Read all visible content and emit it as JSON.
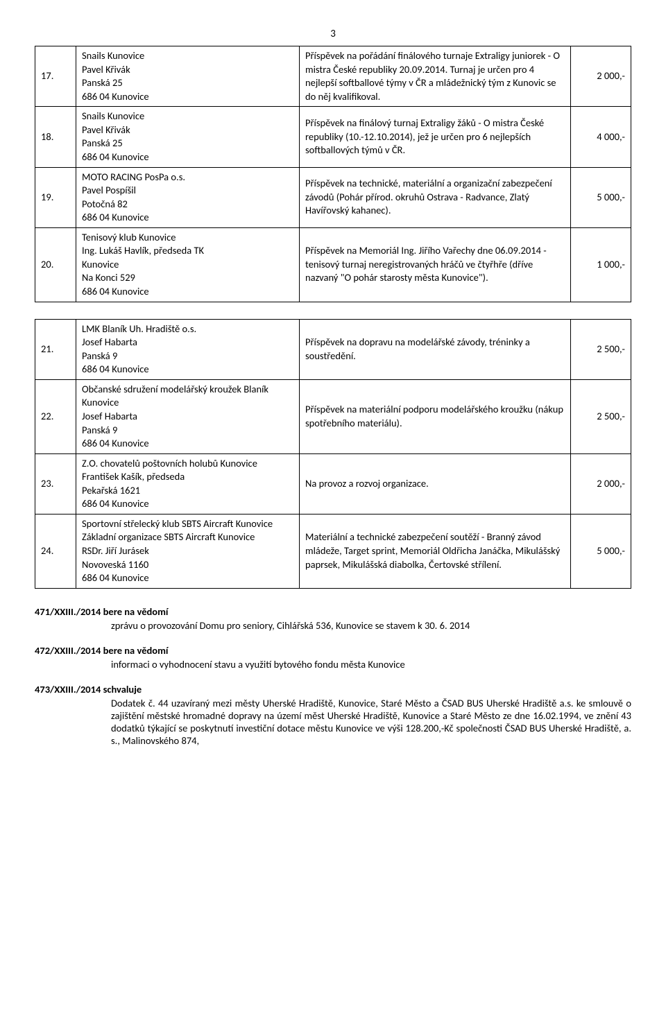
{
  "page_number": "3",
  "table1": {
    "rows": [
      {
        "num": "17.",
        "entity": "Snails Kunovice\nPavel Křivák\nPanská 25\n686 04  Kunovice",
        "desc": "Příspěvek na pořádání finálového turnaje Extraligy juniorek - O mistra České republiky 20.09.2014. Turnaj je určen pro 4 nejlepší softballové týmy v ČR a mládežnický tým z Kunovic se do něj kvalifikoval.",
        "amt": "2 000,-"
      },
      {
        "num": "18.",
        "entity": "Snails Kunovice\nPavel Křivák\nPanská 25\n686 04  Kunovice",
        "desc": "Příspěvek na finálový turnaj Extraligy žáků - O mistra České republiky (10.-12.10.2014), jež je určen pro 6 nejlepších softballových týmů v ČR.",
        "amt": "4 000,-"
      },
      {
        "num": "19.",
        "entity": "MOTO RACING PosPa o.s.\nPavel Pospíšil\nPotočná 82\n686 04  Kunovice",
        "desc": "Příspěvek na technické, materiální a organizační zabezpečení závodů (Pohár přírod. okruhů Ostrava - Radvance, Zlatý Havířovský kahanec).",
        "amt": "5 000,-"
      },
      {
        "num": "20.",
        "entity": "Tenisový klub Kunovice\nIng. Lukáš Havlík, předseda TK\nKunovice\nNa Konci 529\n686 04  Kunovice",
        "desc": "Příspěvek na Memoriál Ing. Jiřího Vařechy dne 06.09.2014 - tenisový turnaj neregistrovaných hráčů ve čtyřhře (dříve nazvaný \"O pohár starosty města Kunovice\").",
        "amt": "1 000,-"
      }
    ]
  },
  "table2": {
    "rows": [
      {
        "num": "21.",
        "entity": "LMK Blaník Uh. Hradiště o.s.\nJosef Habarta\nPanská 9\n686 04  Kunovice",
        "desc": "Příspěvek na dopravu na modelářské závody, tréninky a soustředění.",
        "amt": "2 500,-"
      },
      {
        "num": "22.",
        "entity": "Občanské sdružení modelářský kroužek Blaník Kunovice\nJosef Habarta\nPanská 9\n686 04  Kunovice",
        "desc": "Příspěvek na materiální podporu modelářského kroužku (nákup spotřebního materiálu).",
        "amt": "2 500,-"
      },
      {
        "num": "23.",
        "entity": "Z.O. chovatelů poštovních holubů Kunovice\nFrantišek Kašík, předseda\nPekařská 1621\n686 04  Kunovice",
        "desc": "Na provoz a rozvoj organizace.",
        "amt": "2 000,-"
      },
      {
        "num": "24.",
        "entity": "Sportovní střelecký klub SBTS Aircraft Kunovice\nZákladní organizace SBTS Aircraft Kunovice\nRSDr. Jiří Jurásek\nNovoveská 1160\n686 04  Kunovice",
        "desc": "Materiální a technické zabezpečení soutěží - Branný závod mládeže, Target sprint, Memoriál Oldřicha Janáčka, Mikulášský paprsek, Mikulášská diabolka, Čertovské střílení.",
        "amt": "5 000,-"
      }
    ]
  },
  "resolutions": [
    {
      "heading": "471/XXIII./2014 bere na vědomí",
      "body": "zprávu o provozování Domu pro seniory, Cihlářská 536, Kunovice se stavem k 30. 6. 2014"
    },
    {
      "heading": "472/XXIII./2014 bere na vědomí",
      "body": "informaci o vyhodnocení stavu a využití bytového fondu města Kunovice"
    },
    {
      "heading": "473/XXIII./2014 schvaluje",
      "body": "Dodatek č. 44 uzavíraný mezi městy Uherské Hradiště, Kunovice, Staré Město a ČSAD BUS Uherské Hradiště a.s. ke smlouvě o zajištění městské hromadné dopravy na území měst Uherské Hradiště, Kunovice a Staré Město ze dne 16.02.1994, ve znění 43 dodatků týkající se poskytnutí investiční dotace městu Kunovice ve výši 128.200,-Kč společnosti ČSAD BUS Uherské Hradiště, a. s., Malinovského 874,"
    }
  ]
}
